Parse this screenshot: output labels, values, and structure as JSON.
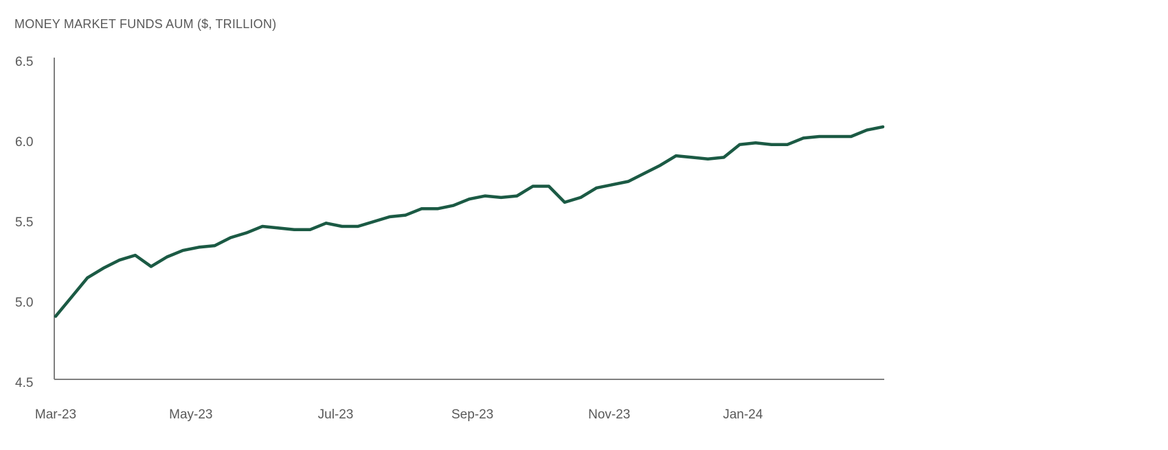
{
  "chart_data": {
    "type": "line",
    "title": "MONEY MARKET FUNDS AUM ($, TRILLION)",
    "xlabel": "",
    "ylabel": "",
    "ylim": [
      4.5,
      6.5
    ],
    "yticks": [
      "6.5",
      "6.0",
      "5.5",
      "5.0",
      "4.5"
    ],
    "yticks_values": [
      6.5,
      6.0,
      5.5,
      5.0,
      4.5
    ],
    "xticks": [
      "Mar-23",
      "May-23",
      "Jul-23",
      "Sep-23",
      "Nov-23",
      "Jan-24"
    ],
    "xticks_index": [
      0,
      8.5,
      17.6,
      26.2,
      34.8,
      43.2
    ],
    "grid": false,
    "legend": "none",
    "line_color": "#1b5a44",
    "series": [
      {
        "values": [
          4.91,
          5.03,
          5.15,
          5.21,
          5.26,
          5.29,
          5.22,
          5.28,
          5.32,
          5.34,
          5.35,
          5.4,
          5.43,
          5.47,
          5.46,
          5.45,
          5.45,
          5.49,
          5.47,
          5.47,
          5.5,
          5.53,
          5.54,
          5.58,
          5.58,
          5.6,
          5.64,
          5.66,
          5.65,
          5.66,
          5.72,
          5.72,
          5.62,
          5.65,
          5.71,
          5.73,
          5.75,
          5.8,
          5.85,
          5.91,
          5.9,
          5.89,
          5.9,
          5.98,
          5.99,
          5.98,
          5.98,
          6.02,
          6.03,
          6.03,
          6.03,
          6.07,
          6.09
        ]
      }
    ]
  }
}
